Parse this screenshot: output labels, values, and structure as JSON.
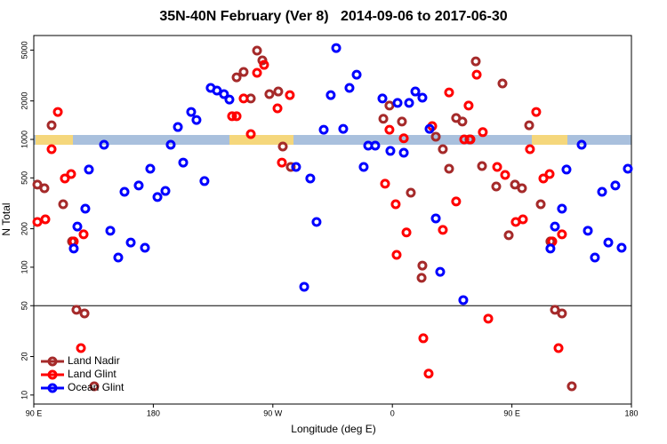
{
  "chart_data": {
    "type": "scatter",
    "title": "35N-40N February (Ver 8)   2014-09-06 to 2017-06-30",
    "x_label": "Longitude (deg E)",
    "y_label": "N Total",
    "log_y": true,
    "legend": "bottom-left",
    "reference_line": 50,
    "xlim": [
      90,
      540
    ],
    "ylim": [
      8.5,
      6500
    ],
    "xticks": [
      {
        "value": 90,
        "label": "90 E"
      },
      {
        "value": 180,
        "label": "180"
      },
      {
        "value": 270,
        "label": "90 W"
      },
      {
        "value": 360,
        "label": "0"
      },
      {
        "value": 450,
        "label": "90 E"
      },
      {
        "value": 540,
        "label": "180"
      }
    ],
    "yticks": [
      10,
      20,
      50,
      100,
      200,
      500,
      1000,
      2000,
      5000
    ],
    "series": [
      {
        "name": "Land Nadir",
        "color": "#a52a2a",
        "x": [
          92.7,
          98,
          103.4,
          112.1,
          118.8,
          122.1,
          128.2,
          135.5,
          242.7,
          248,
          253.4,
          258.1,
          262.1,
          267.4,
          274.1,
          277.5,
          283.5,
          353.2,
          357.8,
          367.2,
          373.9,
          382,
          382.6,
          392.7,
          398,
          402.7,
          408,
          412.7,
          418.1,
          422.8,
          427.5,
          438.2,
          442.9,
          447.6,
          452.3,
          457.6,
          463,
          471.7,
          479,
          482.4,
          487.7,
          495.1
        ],
        "values": [
          443,
          415,
          1290,
          311,
          159,
          46.4,
          43.5,
          11.7,
          3060,
          3370,
          2090,
          4950,
          4150,
          2260,
          2370,
          880,
          609,
          1450,
          1840,
          1380,
          383,
          82.6,
          103,
          1050,
          839,
          590,
          1470,
          1380,
          1000,
          4080,
          619,
          428,
          2740,
          178,
          443,
          415,
          1290,
          311,
          159,
          46.4,
          43.5,
          11.7
        ]
      },
      {
        "name": "Land Glint",
        "color": "#ff0000",
        "x": [
          92.7,
          98.7,
          103.4,
          108.1,
          113.4,
          118.1,
          120.1,
          125.5,
          127.5,
          239.3,
          242.7,
          248,
          253.4,
          258.1,
          263.4,
          273.5,
          276.8,
          282.8,
          354.5,
          357.8,
          362.5,
          363.2,
          368.6,
          370.6,
          383.3,
          387.3,
          390,
          398,
          402.7,
          408,
          414.1,
          417.4,
          418.8,
          423.5,
          428.1,
          432.2,
          438.9,
          444.9,
          452.9,
          458.3,
          463.6,
          468.3,
          473.7,
          478.4,
          480.4,
          485.1,
          487.7
        ],
        "values": [
          226,
          237,
          839,
          1640,
          495,
          536,
          159,
          23.3,
          181,
          1520,
          1520,
          2090,
          1100,
          3320,
          3830,
          1750,
          659,
          2220,
          450,
          1190,
          311,
          125,
          1020,
          187,
          27.8,
          14.7,
          1270,
          196,
          2330,
          327,
          1000,
          1840,
          1000,
          3210,
          1140,
          39.6,
          609,
          527,
          226,
          237,
          839,
          1640,
          495,
          536,
          159,
          23.3,
          181
        ]
      },
      {
        "name": "Ocean Glint",
        "color": "#0000ff",
        "x": [
          120.1,
          122.8,
          128.8,
          131.5,
          142.9,
          147.6,
          153.6,
          158.3,
          163,
          169,
          173.7,
          177.7,
          183.1,
          189.1,
          193.1,
          198.5,
          202.5,
          208.5,
          212.5,
          218.5,
          223.2,
          227.9,
          233.2,
          237.3,
          287.5,
          293.6,
          298.2,
          302.9,
          308.3,
          313.6,
          317.7,
          323,
          327.7,
          333.1,
          338.4,
          341.8,
          347.1,
          352.5,
          358.5,
          363.9,
          368.6,
          372.6,
          377.3,
          382.6,
          388,
          392.7,
          396,
          413.4,
          479,
          482.4,
          487.7,
          491.1,
          502.5,
          507.2,
          512.5,
          517.9,
          522.6,
          527.9,
          532.6,
          537.3
        ],
        "values": [
          140,
          208,
          287,
          581,
          908,
          193,
          119,
          389,
          156,
          436,
          142,
          590,
          354,
          395,
          908,
          1250,
          659,
          1640,
          1420,
          472,
          2530,
          2410,
          2260,
          2050,
          609,
          70.3,
          495,
          226,
          1190,
          2220,
          5190,
          1210,
          2530,
          3210,
          609,
          894,
          894,
          2090,
          813,
          1930,
          787,
          1930,
          2370,
          2120,
          1210,
          241,
          92,
          55.3,
          140,
          208,
          287,
          581,
          908,
          193,
          119,
          389,
          156,
          436,
          142,
          590
        ]
      }
    ]
  }
}
